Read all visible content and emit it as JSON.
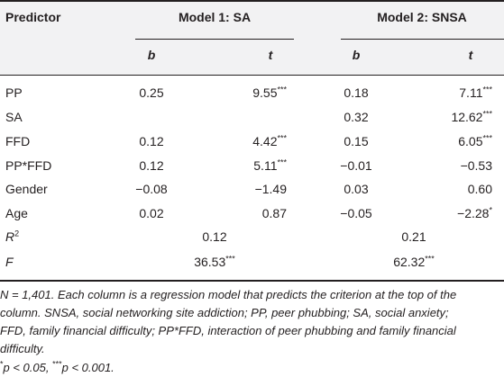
{
  "table": {
    "header": {
      "predictor": "Predictor",
      "model1": "Model 1: SA",
      "model2": "Model 2: SNSA",
      "b": "b",
      "t": "t"
    },
    "rows": [
      {
        "predictor": "PP",
        "m1_b": "0.25",
        "m1_t": "9.55",
        "m1_t_sig": "***",
        "m2_b": "0.18",
        "m2_t": "7.11",
        "m2_t_sig": "***"
      },
      {
        "predictor": "SA",
        "m1_b": "",
        "m1_t": "",
        "m1_t_sig": "",
        "m2_b": "0.32",
        "m2_t": "12.62",
        "m2_t_sig": "***"
      },
      {
        "predictor": "FFD",
        "m1_b": "0.12",
        "m1_t": "4.42",
        "m1_t_sig": "***",
        "m2_b": "0.15",
        "m2_t": "6.05",
        "m2_t_sig": "***"
      },
      {
        "predictor": "PP*FFD",
        "m1_b": "0.12",
        "m1_t": "5.11",
        "m1_t_sig": "***",
        "m2_b": "−0.01",
        "m2_t": "−0.53",
        "m2_t_sig": ""
      },
      {
        "predictor": "Gender",
        "m1_b": "−0.08",
        "m1_t": "−1.49",
        "m1_t_sig": "",
        "m2_b": "0.03",
        "m2_t": "0.60",
        "m2_t_sig": ""
      },
      {
        "predictor": "Age",
        "m1_b": "0.02",
        "m1_t": "0.87",
        "m1_t_sig": "",
        "m2_b": "−0.05",
        "m2_t": "−2.28",
        "m2_t_sig": "*"
      }
    ],
    "r2": {
      "label": "R",
      "label_sup": "2",
      "m1": "0.12",
      "m2": "0.21"
    },
    "f": {
      "label": "F",
      "m1": "36.53",
      "m1_sig": "***",
      "m2": "62.32",
      "m2_sig": "***"
    }
  },
  "notes": {
    "line1": "N = 1,401. Each column is a regression model that predicts the criterion at the top of the",
    "line2": "column. SNSA, social networking site addiction; PP, peer phubbing; SA, social anxiety;",
    "line3": "FFD, family financial difficulty; PP*FFD, interaction of peer phubbing and family financial",
    "line4": "difficulty.",
    "sig_a_mark": "*",
    "sig_a_text": "p < 0.05, ",
    "sig_b_mark": "***",
    "sig_b_text": "p < 0.001."
  }
}
